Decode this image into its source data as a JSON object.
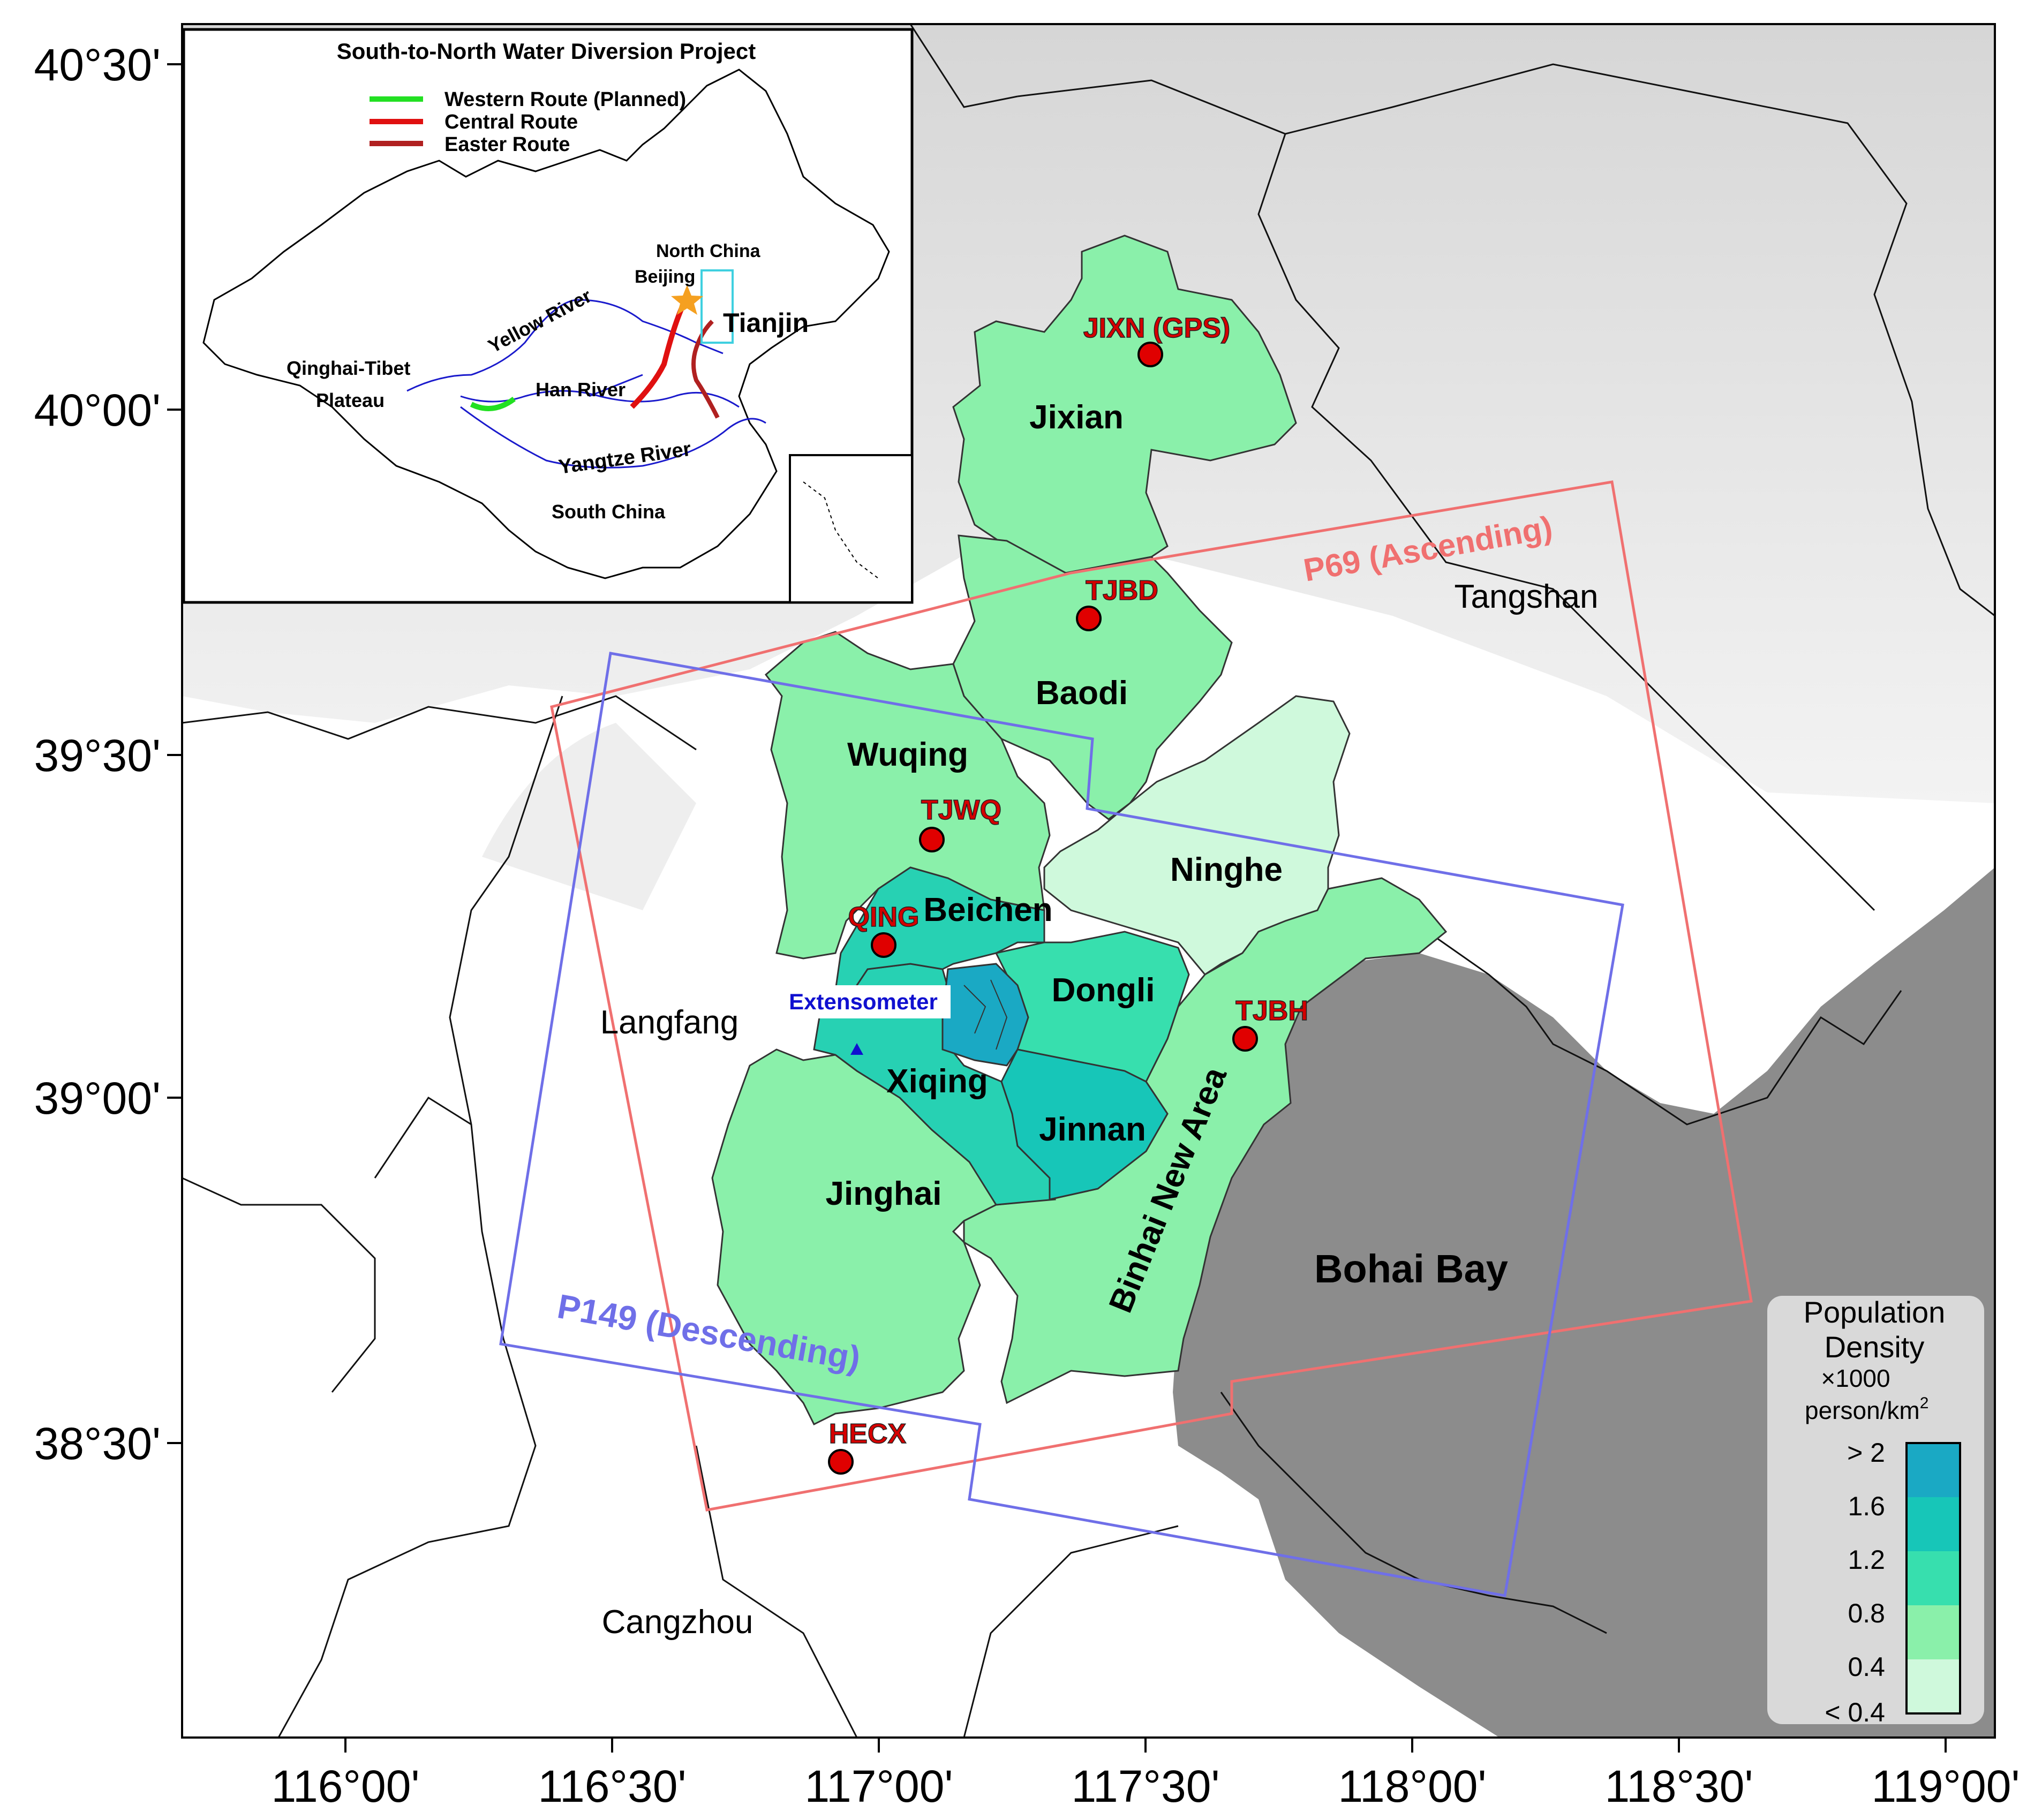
{
  "map": {
    "axes": {
      "lat_labels": [
        "40°30'",
        "40°00'",
        "39°30'",
        "39°00'",
        "38°30'"
      ],
      "lon_labels": [
        "116°00'",
        "116°30'",
        "117°00'",
        "117°30'",
        "118°00'",
        "118°30'",
        "119°00'"
      ]
    },
    "districts": [
      "Jixian",
      "Baodi",
      "Wuqing",
      "Ninghe",
      "Beichen",
      "Dongli",
      "Xiqing",
      "Jinnan",
      "Jinghai",
      "Binhai New Area"
    ],
    "cities": [
      "Tangshan",
      "Langfang",
      "Cangzhou"
    ],
    "water_body": "Bohai Bay",
    "stations": [
      "JIXN (GPS)",
      "TJBD",
      "TJWQ",
      "QING",
      "TJBH",
      "HECX"
    ],
    "extensometer": "Extensometer",
    "tracks": {
      "ascending": "P69 (Ascending)",
      "descending": "P149 (Descending)"
    },
    "colors": {
      "ascending": "#f07070",
      "descending": "#6f6fe8",
      "station": "#e00000",
      "sea": "#8c8c8c"
    }
  },
  "legend": {
    "title_line1": "Population",
    "title_line2": "Density",
    "unit_line1": "×1000",
    "unit_line2": "person/km",
    "unit_sup": "2",
    "classes": [
      "> 2",
      "1.6",
      "1.2",
      "0.8",
      "0.4",
      "< 0.4"
    ],
    "colors": [
      "#1aa9c4",
      "#17c6b8",
      "#37dfae",
      "#8af0aa",
      "#cff9dc"
    ]
  },
  "inset": {
    "title": "South-to-North Water Diversion Project",
    "routes": [
      {
        "label": "Western Route (Planned)",
        "color": "#22e022"
      },
      {
        "label": "Central Route",
        "color": "#e01010"
      },
      {
        "label": "Easter Route",
        "color": "#b02020"
      }
    ],
    "labels": {
      "north_china": "North China",
      "beijing": "Beijing",
      "tianjin": "Tianjin",
      "yellow_river": "Yellow River",
      "qinghai_1": "Qinghai-Tibet",
      "qinghai_2": "Plateau",
      "han_river": "Han River",
      "yangtze_river": "Yangtze River",
      "south_china": "South China"
    }
  }
}
